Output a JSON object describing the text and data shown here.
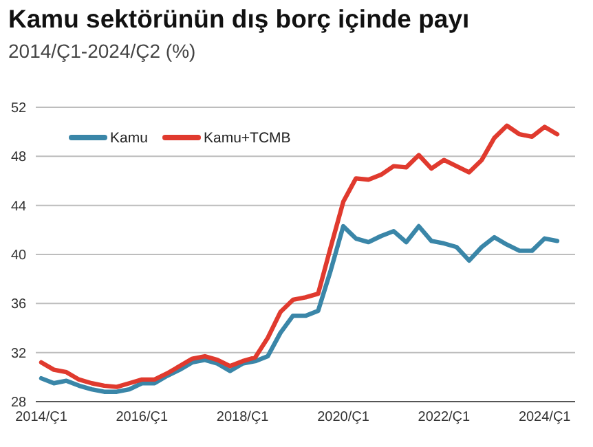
{
  "chart_data": {
    "type": "line",
    "title": "Kamu sektörünün dış borç içinde payı",
    "subtitle": "2014/Ç1-2024/Ç2 (%)",
    "categories": [
      "2014/Ç1",
      null,
      null,
      null,
      null,
      null,
      null,
      null,
      "2016/Ç1",
      null,
      null,
      null,
      null,
      null,
      null,
      null,
      "2018/Ç1",
      null,
      null,
      null,
      null,
      null,
      null,
      null,
      "2020/Ç1",
      null,
      null,
      null,
      null,
      null,
      null,
      null,
      "2022/Ç1",
      null,
      null,
      null,
      null,
      null,
      null,
      null,
      "2024/Ç1",
      null
    ],
    "series": [
      {
        "name": "Kamu",
        "color": "#3a86a8",
        "values": [
          29.9,
          29.5,
          29.7,
          29.3,
          29.0,
          28.8,
          28.8,
          29.0,
          29.5,
          29.5,
          30.1,
          30.6,
          31.2,
          31.4,
          31.1,
          30.5,
          31.1,
          31.3,
          31.7,
          33.6,
          35.0,
          35.0,
          35.4,
          38.7,
          42.3,
          41.3,
          41.0,
          41.5,
          41.9,
          41.0,
          42.3,
          41.1,
          40.9,
          40.6,
          39.5,
          40.6,
          41.4,
          40.8,
          40.3,
          40.3,
          41.3,
          41.1
        ]
      },
      {
        "name": "Kamu+TCMB",
        "color": "#e03a2e",
        "values": [
          31.2,
          30.6,
          30.4,
          29.8,
          29.5,
          29.3,
          29.2,
          29.5,
          29.8,
          29.8,
          30.3,
          30.9,
          31.5,
          31.7,
          31.4,
          30.9,
          31.3,
          31.6,
          33.2,
          35.3,
          36.3,
          36.5,
          36.8,
          40.6,
          44.3,
          46.2,
          46.1,
          46.5,
          47.2,
          47.1,
          48.1,
          47.0,
          47.7,
          47.2,
          46.7,
          47.7,
          49.5,
          50.5,
          49.8,
          49.6,
          50.4,
          49.8
        ]
      }
    ],
    "ylim": [
      28,
      52
    ],
    "yticks": [
      28,
      32,
      36,
      40,
      44,
      48,
      52
    ],
    "grid": "y",
    "legend": "top left",
    "marker": "none",
    "line_style": "solid"
  }
}
